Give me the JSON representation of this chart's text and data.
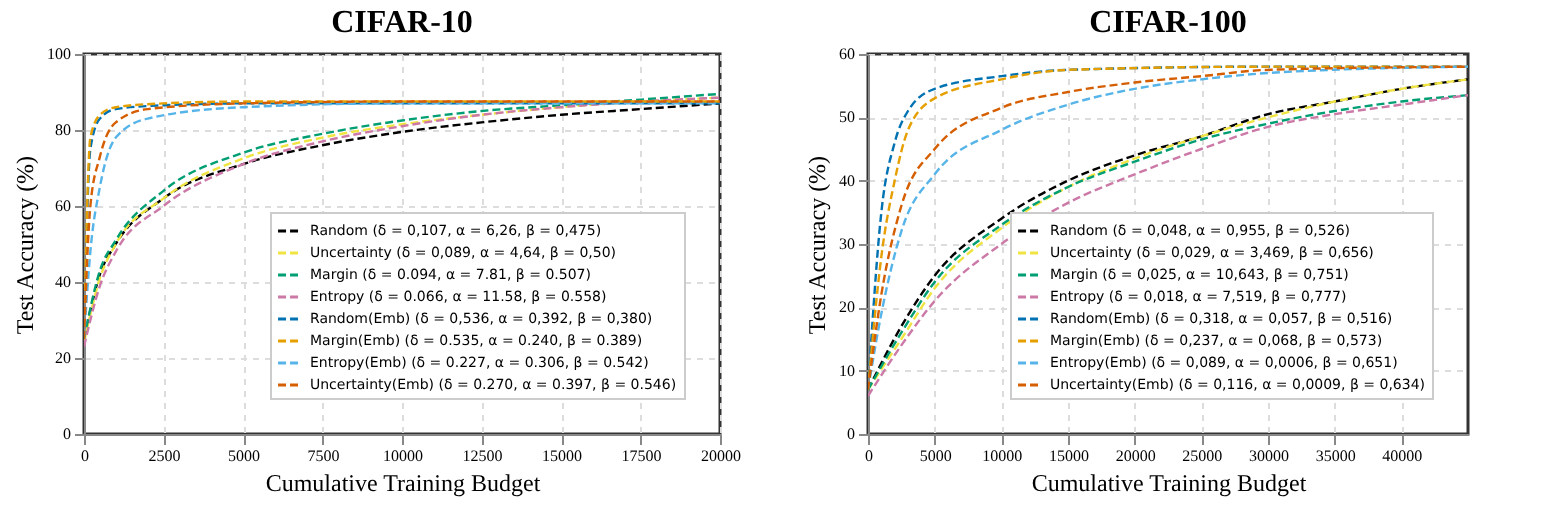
{
  "chart_data": [
    {
      "type": "line",
      "title": "CIFAR-10",
      "xlabel": "Cumulative Training Budget",
      "ylabel": "Test Accuracy (%)",
      "xlim": [
        0,
        20000
      ],
      "xticks": [
        0,
        2500,
        5000,
        7500,
        10000,
        12500,
        15000,
        17500,
        20000
      ],
      "ylim": [
        0,
        100
      ],
      "yticks": [
        0,
        20,
        40,
        60,
        80,
        100
      ],
      "grid": true,
      "legend": "bottom right",
      "line_style": "dashed",
      "marker": "none",
      "series": [
        {
          "name": "Random (δ = 0,107, α = 6,26, β = 0,475)",
          "color": "#000000",
          "x": [
            0,
            500,
            1000,
            2500,
            5000,
            7500,
            10000,
            12500,
            15000,
            17500,
            20000
          ],
          "values": [
            25,
            42,
            50,
            62,
            71,
            76,
            79.5,
            82,
            84,
            85.5,
            87
          ]
        },
        {
          "name": "Uncertainty (δ = 0,089, α = 4,64, β = 0,50)",
          "color": "#f0e442",
          "x": [
            0,
            500,
            1000,
            2500,
            5000,
            7500,
            10000,
            12500,
            15000,
            17500,
            20000
          ],
          "values": [
            24,
            41,
            50,
            62,
            72.5,
            78,
            81.5,
            84,
            86,
            87.5,
            88.5
          ]
        },
        {
          "name": "Margin (δ = 0.094, α = 7.81, β = 0.507)",
          "color": "#009e73",
          "x": [
            0,
            500,
            1000,
            2500,
            5000,
            7500,
            10000,
            12500,
            15000,
            17500,
            20000
          ],
          "values": [
            25,
            43,
            51,
            64,
            74,
            79,
            82.5,
            85,
            86.5,
            88,
            89.5
          ]
        },
        {
          "name": "Entropy (δ = 0.066, α = 11.58, β = 0.558)",
          "color": "#cc79a7",
          "x": [
            0,
            500,
            1000,
            2500,
            5000,
            7500,
            10000,
            12500,
            15000,
            17500,
            20000
          ],
          "values": [
            23,
            39,
            48,
            60,
            71,
            77,
            81,
            84,
            86,
            87.5,
            88.5
          ]
        },
        {
          "name": "Random(Emb) (δ = 0,536, α = 0,392, β = 0,380)",
          "color": "#0072b2",
          "x": [
            0,
            200,
            500,
            1000,
            2500,
            5000,
            10000,
            15000,
            20000
          ],
          "values": [
            25,
            75,
            83,
            85.5,
            86.5,
            87,
            87,
            87,
            87
          ]
        },
        {
          "name": "Margin(Emb) (δ = 0.535, α = 0.240, β = 0.389)",
          "color": "#e69f00",
          "x": [
            0,
            200,
            500,
            1000,
            2500,
            5000,
            10000,
            15000,
            20000
          ],
          "values": [
            25,
            78,
            84,
            86,
            87,
            87.5,
            87.5,
            87.5,
            87.5
          ]
        },
        {
          "name": "Entropy(Emb)  (δ = 0.227, α = 0.306, β = 0.542)",
          "color": "#56b4e9",
          "x": [
            0,
            200,
            500,
            1000,
            2000,
            5000,
            10000,
            15000,
            20000
          ],
          "values": [
            25,
            48,
            65,
            78,
            83,
            86,
            87,
            87,
            87
          ]
        },
        {
          "name": "Uncertainty(Emb) (δ = 0.270, α = 0.397, β = 0.546)",
          "color": "#d55e00",
          "x": [
            0,
            200,
            500,
            1000,
            2000,
            5000,
            10000,
            15000,
            20000
          ],
          "values": [
            25,
            60,
            73,
            82,
            85.5,
            87,
            87.5,
            87.5,
            87.5
          ]
        }
      ]
    },
    {
      "type": "line",
      "title": "CIFAR-100",
      "xlabel": "Cumulative Training Budget",
      "ylabel": "Test Accuracy (%)",
      "xlim": [
        0,
        45000
      ],
      "xticks": [
        0,
        5000,
        10000,
        15000,
        20000,
        25000,
        30000,
        35000,
        40000
      ],
      "ylim": [
        0,
        60
      ],
      "yticks": [
        0,
        10,
        20,
        30,
        40,
        50,
        60
      ],
      "grid": true,
      "legend": "bottom right",
      "line_style": "dashed",
      "marker": "none",
      "series": [
        {
          "name": "Random (δ = 0,048, α = 0,955, β = 0,526)",
          "color": "#000000",
          "x": [
            0,
            2500,
            5000,
            10000,
            15000,
            20000,
            25000,
            30000,
            35000,
            40000,
            45000
          ],
          "values": [
            7,
            17,
            25,
            34,
            40,
            44,
            47,
            50.5,
            52.5,
            54.5,
            56
          ]
        },
        {
          "name": "Uncertainty (δ = 0,029, α = 3,469, β = 0,656)",
          "color": "#f0e442",
          "x": [
            0,
            2500,
            5000,
            10000,
            15000,
            20000,
            25000,
            30000,
            35000,
            40000,
            45000
          ],
          "values": [
            7,
            15,
            23,
            32.5,
            39,
            43.5,
            47,
            50,
            52.5,
            54.5,
            56
          ]
        },
        {
          "name": "Margin (δ = 0,025, α = 10,643, β = 0,751)",
          "color": "#009e73",
          "x": [
            0,
            2500,
            5000,
            10000,
            15000,
            20000,
            25000,
            30000,
            35000,
            40000,
            45000
          ],
          "values": [
            7,
            16,
            24,
            33,
            39,
            43,
            46.5,
            49,
            51,
            52.5,
            53.5
          ]
        },
        {
          "name": "Entropy (δ = 0,018, α = 7,519, β = 0,777)",
          "color": "#cc79a7",
          "x": [
            0,
            2500,
            5000,
            10000,
            15000,
            20000,
            25000,
            30000,
            35000,
            40000,
            45000
          ],
          "values": [
            6,
            14,
            21,
            30,
            36.5,
            41,
            45,
            48.5,
            50.5,
            52,
            53.5
          ]
        },
        {
          "name": "Random(Emb) (δ = 0,318, α = 0,057, β = 0,516)",
          "color": "#0072b2",
          "x": [
            0,
            1000,
            2000,
            3000,
            5000,
            10000,
            15000,
            30000,
            45000
          ],
          "values": [
            7,
            35,
            46,
            51,
            54.5,
            56.5,
            57.5,
            58,
            58
          ]
        },
        {
          "name": "Margin(Emb) (δ = 0,237, α = 0,068, β = 0,573)",
          "color": "#e69f00",
          "x": [
            0,
            1000,
            2000,
            3000,
            5000,
            10000,
            15000,
            30000,
            45000
          ],
          "values": [
            7,
            28,
            40,
            48,
            53,
            56,
            57.5,
            58,
            58
          ]
        },
        {
          "name": "Entropy(Emb)  (δ = 0,089, α = 0,0006, β = 0,651)",
          "color": "#56b4e9",
          "x": [
            0,
            1000,
            2500,
            5000,
            10000,
            15000,
            20000,
            25000,
            30000,
            45000
          ],
          "values": [
            7,
            19,
            32,
            41,
            48,
            52,
            54.5,
            56,
            57,
            58
          ]
        },
        {
          "name": "Uncertainty(Emb) (δ = 0,116, α = 0,0009, β = 0,634)",
          "color": "#d55e00",
          "x": [
            0,
            1000,
            2500,
            5000,
            10000,
            15000,
            20000,
            25000,
            30000,
            45000
          ],
          "values": [
            7,
            22,
            36,
            45,
            51.5,
            54,
            55.5,
            56.5,
            57.5,
            58
          ]
        }
      ]
    }
  ]
}
